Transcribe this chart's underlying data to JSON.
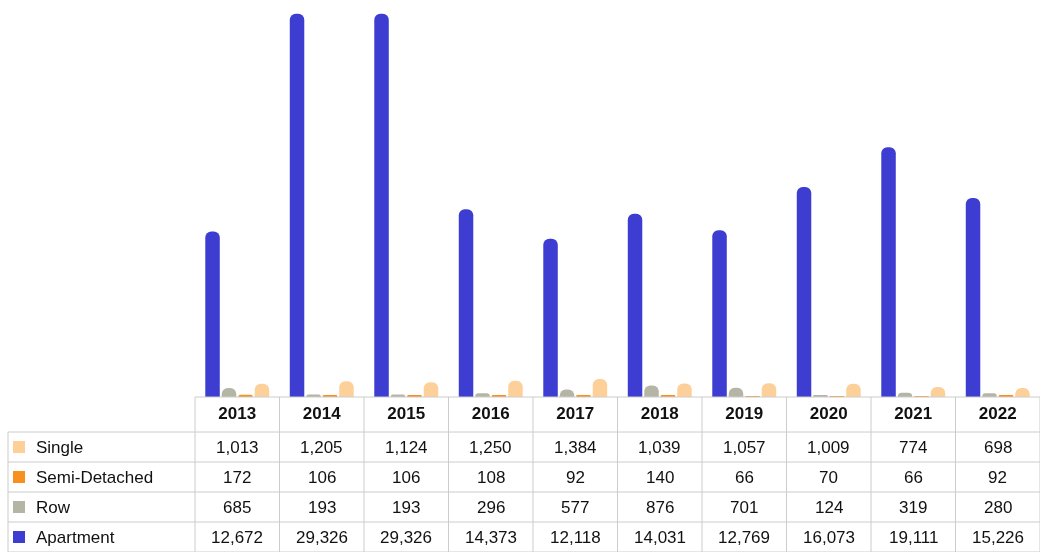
{
  "chart_data": {
    "type": "bar",
    "categories": [
      "2013",
      "2014",
      "2015",
      "2016",
      "2017",
      "2018",
      "2019",
      "2020",
      "2021",
      "2022"
    ],
    "legend": "bottom left",
    "series": [
      {
        "name": "Single",
        "color": "#fdd09a",
        "values": [
          1013,
          1205,
          1124,
          1250,
          1384,
          1039,
          1057,
          1009,
          774,
          698
        ],
        "value_labels": [
          "1,013",
          "1,205",
          "1,124",
          "1,250",
          "1,384",
          "1,039",
          "1,057",
          "1,009",
          "774",
          "698"
        ]
      },
      {
        "name": "Semi-Detached",
        "color": "#f7901e",
        "values": [
          172,
          106,
          106,
          108,
          92,
          140,
          66,
          70,
          66,
          92
        ],
        "value_labels": [
          "172",
          "106",
          "106",
          "108",
          "92",
          "140",
          "66",
          "70",
          "66",
          "92"
        ]
      },
      {
        "name": "Row",
        "color": "#b5b5a5",
        "values": [
          685,
          193,
          193,
          296,
          577,
          876,
          701,
          124,
          319,
          280
        ],
        "value_labels": [
          "685",
          "193",
          "193",
          "296",
          "577",
          "876",
          "701",
          "124",
          "319",
          "280"
        ]
      },
      {
        "name": "Apartment",
        "color": "#3d3dd1",
        "values": [
          12672,
          29326,
          29326,
          14373,
          12118,
          14031,
          12769,
          16073,
          19111,
          15226
        ],
        "value_labels": [
          "12,672",
          "29,326",
          "29,326",
          "14,373",
          "12,118",
          "14,031",
          "12,769",
          "16,073",
          "19,111",
          "15,226"
        ]
      }
    ]
  }
}
